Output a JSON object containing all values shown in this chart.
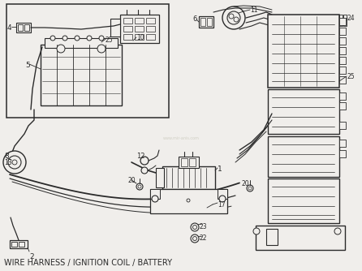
{
  "title": "WIRE HARNESS / IGNITION COIL / BATTERY",
  "title_fontsize": 7.0,
  "bg_color": "#f0eeeb",
  "line_color": "#2a2a2a",
  "fig_width": 4.46,
  "fig_height": 3.34,
  "dpi": 100
}
